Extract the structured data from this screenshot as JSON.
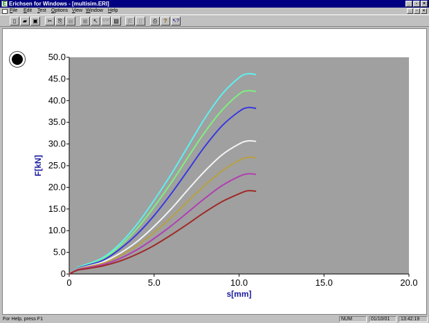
{
  "titlebar": {
    "title": "Erichsen for Windows - [multisim.ERI]",
    "minimize": "_",
    "maximize": "▫",
    "close": "×"
  },
  "menubar": {
    "items": [
      {
        "first": "F",
        "rest": "ile"
      },
      {
        "first": "E",
        "rest": "dit"
      },
      {
        "first": "T",
        "rest": "est"
      },
      {
        "first": "O",
        "rest": "ptions"
      },
      {
        "first": "V",
        "rest": "iew"
      },
      {
        "first": "W",
        "rest": "indow"
      },
      {
        "first": "H",
        "rest": "elp"
      }
    ],
    "mdi_minimize": "_",
    "mdi_restore": "▫",
    "mdi_close": "×"
  },
  "toolbar": {
    "icons": [
      "new-file-icon",
      "open-folder-icon",
      "save-icon",
      "cut-icon",
      "copy-icon",
      "paste-icon",
      "report-icon",
      "pointer-icon",
      "stop-icon",
      "graph-icon",
      "layout-icon",
      "page-icon",
      "print-icon",
      "help-icon",
      "context-help-icon"
    ],
    "glyphs": [
      "▯",
      "▰",
      "▣",
      "✂",
      "⎘",
      "▤",
      "▦",
      "↖",
      "STP",
      "▧",
      "|E",
      "▯",
      "⎙",
      "?",
      "↖?"
    ]
  },
  "colors": {
    "plot_bg": "#a0a0a0",
    "axis_title": "#1a1aa0",
    "series": [
      "#5ff0f0",
      "#7ef07e",
      "#3838e0",
      "#f4f4f4",
      "#b8a040",
      "#b040b0",
      "#a02828"
    ]
  },
  "chart_data": {
    "type": "line",
    "xlabel": "s[mm]",
    "ylabel": "F[kN]",
    "xlim": [
      0,
      20
    ],
    "ylim": [
      0,
      50
    ],
    "x_ticks": [
      "0",
      "5.0",
      "10.0",
      "15.0",
      "20.0"
    ],
    "y_ticks": [
      "0",
      "5.0",
      "10.0",
      "15.0",
      "20.0",
      "25.0",
      "30.0",
      "35.0",
      "40.0",
      "45.0",
      "50.0"
    ],
    "x_tick_values": [
      0,
      5,
      10,
      15,
      20
    ],
    "y_tick_values": [
      0,
      5,
      10,
      15,
      20,
      25,
      30,
      35,
      40,
      45,
      50
    ],
    "grid": false,
    "legend": "none",
    "series": [
      {
        "x": [
          0,
          0.5,
          1,
          2,
          3,
          4,
          5,
          6,
          7,
          8,
          9,
          10,
          10.5,
          11
        ],
        "values": [
          0,
          1.5,
          2.2,
          3.8,
          7.0,
          11.5,
          17.0,
          23.0,
          29.5,
          36.0,
          41.5,
          45.3,
          46.2,
          46.0
        ]
      },
      {
        "x": [
          0,
          0.5,
          1,
          2,
          3,
          4,
          5,
          6,
          7,
          8,
          9,
          10,
          10.5,
          11
        ],
        "values": [
          0,
          1.4,
          2.0,
          3.5,
          6.5,
          10.5,
          15.5,
          21.0,
          27.0,
          32.8,
          37.8,
          41.5,
          42.3,
          42.1
        ]
      },
      {
        "x": [
          0,
          0.5,
          1,
          2,
          3,
          4,
          5,
          6,
          7,
          8,
          9,
          10,
          10.5,
          11
        ],
        "values": [
          0,
          1.3,
          1.9,
          3.2,
          5.8,
          9.2,
          13.5,
          18.5,
          24.0,
          29.5,
          34.2,
          37.5,
          38.4,
          38.2
        ]
      },
      {
        "x": [
          0,
          0.5,
          1,
          2,
          3,
          4,
          5,
          6,
          7,
          8,
          9,
          10,
          10.5,
          11
        ],
        "values": [
          0,
          1.2,
          1.7,
          2.8,
          4.8,
          7.5,
          11.0,
          15.0,
          19.5,
          23.8,
          27.5,
          30.0,
          30.7,
          30.6
        ]
      },
      {
        "x": [
          0,
          0.5,
          1,
          2,
          3,
          4,
          5,
          6,
          7,
          8,
          9,
          10,
          10.5,
          11
        ],
        "values": [
          0,
          1.1,
          1.6,
          2.5,
          4.2,
          6.6,
          9.6,
          13.0,
          16.8,
          20.5,
          23.8,
          26.2,
          26.9,
          26.8
        ]
      },
      {
        "x": [
          0,
          0.5,
          1,
          2,
          3,
          4,
          5,
          6,
          7,
          8,
          9,
          10,
          10.5,
          11
        ],
        "values": [
          0,
          1.0,
          1.4,
          2.2,
          3.6,
          5.6,
          8.2,
          11.1,
          14.3,
          17.5,
          20.4,
          22.5,
          23.1,
          23.0
        ]
      },
      {
        "x": [
          0,
          0.5,
          1,
          2,
          3,
          4,
          5,
          6,
          7,
          8,
          9,
          10,
          10.5,
          11
        ],
        "values": [
          0,
          0.9,
          1.2,
          1.9,
          3.0,
          4.6,
          6.6,
          9.0,
          11.6,
          14.3,
          16.7,
          18.5,
          19.2,
          19.1
        ]
      }
    ]
  },
  "statusbar": {
    "help": "For Help, press F1",
    "num": "NUM",
    "date": "01/10/01",
    "time": "13:42:19"
  }
}
